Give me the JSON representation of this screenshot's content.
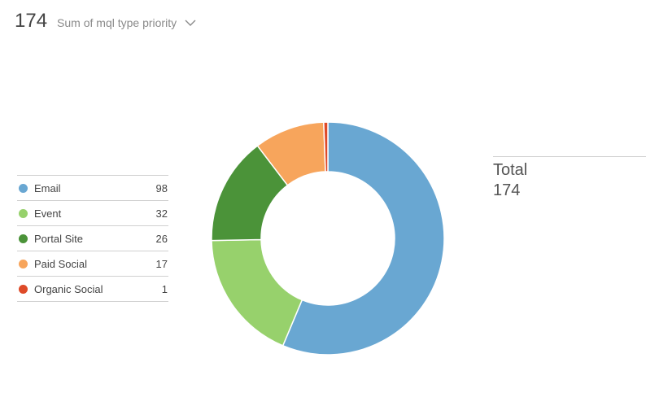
{
  "header": {
    "value": "174",
    "metric_label": "Sum of mql type priority"
  },
  "total": {
    "label": "Total",
    "value": "174"
  },
  "chart_data": {
    "type": "pie",
    "categories": [
      "Email",
      "Event",
      "Portal Site",
      "Paid Social",
      "Organic Social"
    ],
    "values": [
      98,
      32,
      26,
      17,
      1
    ],
    "colors": [
      "#69a7d2",
      "#97d16c",
      "#4b9339",
      "#f7a55c",
      "#de4a28"
    ],
    "donut": true
  }
}
